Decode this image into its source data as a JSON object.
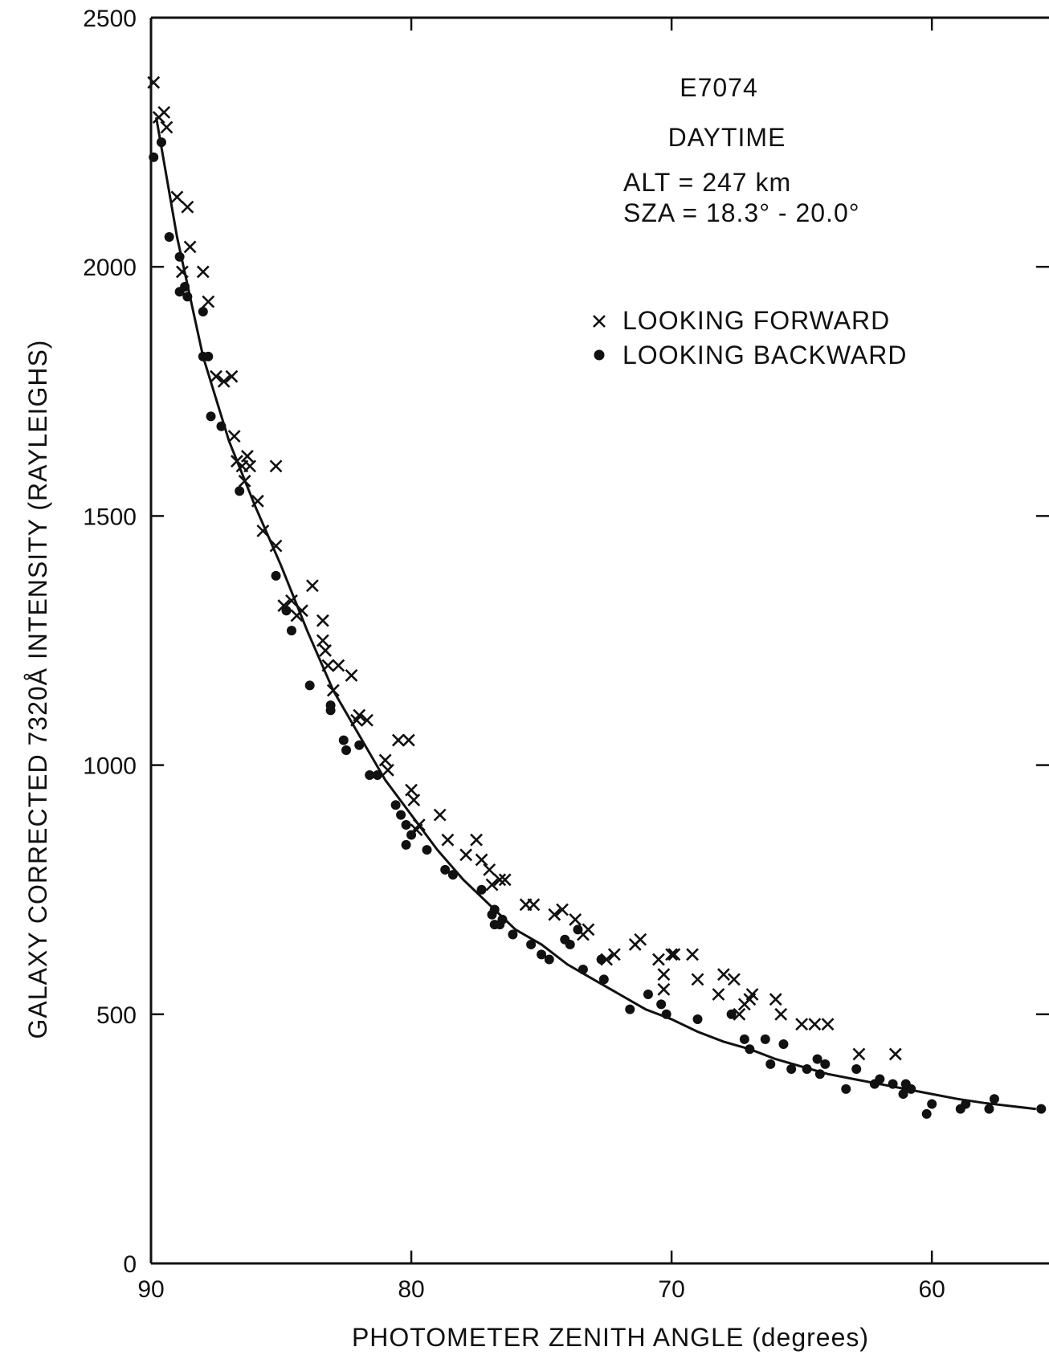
{
  "chart_data": {
    "type": "scatter",
    "xlabel": "PHOTOMETER ZENITH ANGLE (degrees)",
    "ylabel": "GALAXY CORRECTED 7320Å INTENSITY (RAYLEIGHS)",
    "xlim": [
      90,
      55.5
    ],
    "ylim": [
      0,
      2500
    ],
    "x_ticks": [
      "90",
      "80",
      "70",
      "60"
    ],
    "y_ticks": [
      "0",
      "500",
      "1000",
      "1500",
      "2000",
      "2500"
    ],
    "grid": false,
    "legend_position": "top-right",
    "annotations": {
      "line1": "E7074",
      "line2": "DAYTIME",
      "line3": "ALT = 247 km",
      "line4": "SZA = 18.3° - 20.0°"
    },
    "series": [
      {
        "name": "LOOKING FORWARD",
        "marker": "x",
        "points": [
          [
            89.9,
            2370
          ],
          [
            89.7,
            2300
          ],
          [
            89.5,
            2310
          ],
          [
            89.4,
            2280
          ],
          [
            89.0,
            2140
          ],
          [
            88.6,
            2120
          ],
          [
            88.5,
            2040
          ],
          [
            88.8,
            1990
          ],
          [
            88.0,
            1990
          ],
          [
            87.8,
            1930
          ],
          [
            87.5,
            1780
          ],
          [
            87.2,
            1770
          ],
          [
            86.9,
            1780
          ],
          [
            86.8,
            1660
          ],
          [
            86.7,
            1610
          ],
          [
            86.5,
            1600
          ],
          [
            86.3,
            1620
          ],
          [
            86.2,
            1600
          ],
          [
            86.4,
            1570
          ],
          [
            85.9,
            1530
          ],
          [
            85.7,
            1470
          ],
          [
            85.2,
            1600
          ],
          [
            85.2,
            1440
          ],
          [
            84.9,
            1320
          ],
          [
            84.6,
            1330
          ],
          [
            84.4,
            1300
          ],
          [
            84.2,
            1310
          ],
          [
            83.8,
            1360
          ],
          [
            83.4,
            1290
          ],
          [
            83.4,
            1250
          ],
          [
            83.3,
            1230
          ],
          [
            83.2,
            1200
          ],
          [
            82.8,
            1200
          ],
          [
            83.0,
            1150
          ],
          [
            82.3,
            1180
          ],
          [
            82.0,
            1100
          ],
          [
            81.7,
            1090
          ],
          [
            82.1,
            1090
          ],
          [
            81.0,
            1010
          ],
          [
            80.9,
            990
          ],
          [
            80.5,
            1050
          ],
          [
            80.1,
            1050
          ],
          [
            80.0,
            950
          ],
          [
            79.9,
            930
          ],
          [
            79.7,
            880
          ],
          [
            79.8,
            870
          ],
          [
            78.9,
            900
          ],
          [
            78.6,
            850
          ],
          [
            77.9,
            820
          ],
          [
            77.5,
            850
          ],
          [
            77.3,
            810
          ],
          [
            77.0,
            790
          ],
          [
            76.9,
            760
          ],
          [
            76.6,
            770
          ],
          [
            76.4,
            770
          ],
          [
            75.6,
            720
          ],
          [
            75.3,
            720
          ],
          [
            74.5,
            700
          ],
          [
            74.2,
            710
          ],
          [
            73.7,
            690
          ],
          [
            73.4,
            660
          ],
          [
            73.2,
            670
          ],
          [
            72.5,
            610
          ],
          [
            72.2,
            620
          ],
          [
            71.4,
            640
          ],
          [
            71.2,
            650
          ],
          [
            70.5,
            610
          ],
          [
            70.3,
            580
          ],
          [
            70.3,
            550
          ],
          [
            70.0,
            620
          ],
          [
            69.9,
            620
          ],
          [
            69.2,
            620
          ],
          [
            69.0,
            570
          ],
          [
            68.2,
            540
          ],
          [
            68.0,
            580
          ],
          [
            67.6,
            570
          ],
          [
            67.4,
            500
          ],
          [
            67.2,
            520
          ],
          [
            67.0,
            530
          ],
          [
            66.9,
            540
          ],
          [
            66.0,
            530
          ],
          [
            65.8,
            500
          ],
          [
            65.0,
            480
          ],
          [
            64.5,
            480
          ],
          [
            64.0,
            480
          ],
          [
            62.8,
            420
          ],
          [
            61.4,
            420
          ]
        ]
      },
      {
        "name": "LOOKING BACKWARD",
        "marker": "dot",
        "points": [
          [
            89.9,
            2220
          ],
          [
            89.6,
            2250
          ],
          [
            89.3,
            2060
          ],
          [
            88.9,
            1950
          ],
          [
            88.9,
            2020
          ],
          [
            88.7,
            1960
          ],
          [
            88.6,
            1940
          ],
          [
            88.0,
            1910
          ],
          [
            88.0,
            1820
          ],
          [
            87.8,
            1820
          ],
          [
            87.7,
            1700
          ],
          [
            87.3,
            1680
          ],
          [
            86.6,
            1550
          ],
          [
            85.2,
            1380
          ],
          [
            84.8,
            1310
          ],
          [
            84.6,
            1270
          ],
          [
            83.9,
            1160
          ],
          [
            83.1,
            1120
          ],
          [
            83.1,
            1110
          ],
          [
            82.6,
            1050
          ],
          [
            82.5,
            1030
          ],
          [
            82.0,
            1040
          ],
          [
            81.6,
            980
          ],
          [
            81.3,
            980
          ],
          [
            80.6,
            920
          ],
          [
            80.4,
            900
          ],
          [
            80.2,
            880
          ],
          [
            80.0,
            860
          ],
          [
            80.2,
            840
          ],
          [
            79.4,
            830
          ],
          [
            78.7,
            790
          ],
          [
            78.4,
            780
          ],
          [
            77.3,
            750
          ],
          [
            76.8,
            710
          ],
          [
            76.9,
            700
          ],
          [
            76.5,
            690
          ],
          [
            76.8,
            680
          ],
          [
            76.6,
            680
          ],
          [
            76.1,
            660
          ],
          [
            75.4,
            640
          ],
          [
            75.0,
            620
          ],
          [
            74.7,
            610
          ],
          [
            74.1,
            650
          ],
          [
            73.9,
            640
          ],
          [
            73.6,
            670
          ],
          [
            73.4,
            590
          ],
          [
            72.7,
            610
          ],
          [
            72.6,
            570
          ],
          [
            71.6,
            510
          ],
          [
            70.9,
            540
          ],
          [
            70.4,
            520
          ],
          [
            70.2,
            500
          ],
          [
            69.0,
            490
          ],
          [
            67.7,
            500
          ],
          [
            67.2,
            450
          ],
          [
            67.0,
            430
          ],
          [
            66.4,
            450
          ],
          [
            66.2,
            400
          ],
          [
            65.7,
            440
          ],
          [
            65.4,
            390
          ],
          [
            64.8,
            390
          ],
          [
            64.4,
            410
          ],
          [
            64.3,
            380
          ],
          [
            64.1,
            400
          ],
          [
            63.3,
            350
          ],
          [
            62.9,
            390
          ],
          [
            62.2,
            360
          ],
          [
            62.0,
            370
          ],
          [
            61.5,
            360
          ],
          [
            61.1,
            340
          ],
          [
            61.0,
            360
          ],
          [
            60.8,
            350
          ],
          [
            60.2,
            300
          ],
          [
            60.0,
            320
          ],
          [
            58.9,
            310
          ],
          [
            58.7,
            320
          ],
          [
            57.8,
            310
          ],
          [
            57.6,
            330
          ],
          [
            55.8,
            310
          ]
        ]
      }
    ],
    "fit_curve": {
      "x": [
        89.8,
        89.0,
        88.0,
        87.0,
        86.0,
        85.0,
        84.0,
        83.0,
        82.0,
        81.0,
        80.0,
        79.0,
        78.0,
        77.0,
        76.0,
        75.0,
        74.0,
        73.0,
        72.0,
        71.0,
        70.0,
        69.0,
        68.0,
        67.0,
        66.0,
        65.0,
        64.0,
        63.0,
        62.0,
        61.0,
        60.0,
        59.0,
        58.0,
        57.0,
        56.0
      ],
      "y": [
        2300,
        2060,
        1820,
        1650,
        1520,
        1400,
        1270,
        1150,
        1060,
        970,
        900,
        830,
        770,
        720,
        670,
        640,
        600,
        570,
        540,
        510,
        490,
        465,
        445,
        430,
        410,
        395,
        380,
        370,
        360,
        350,
        340,
        330,
        322,
        316,
        310
      ]
    }
  }
}
